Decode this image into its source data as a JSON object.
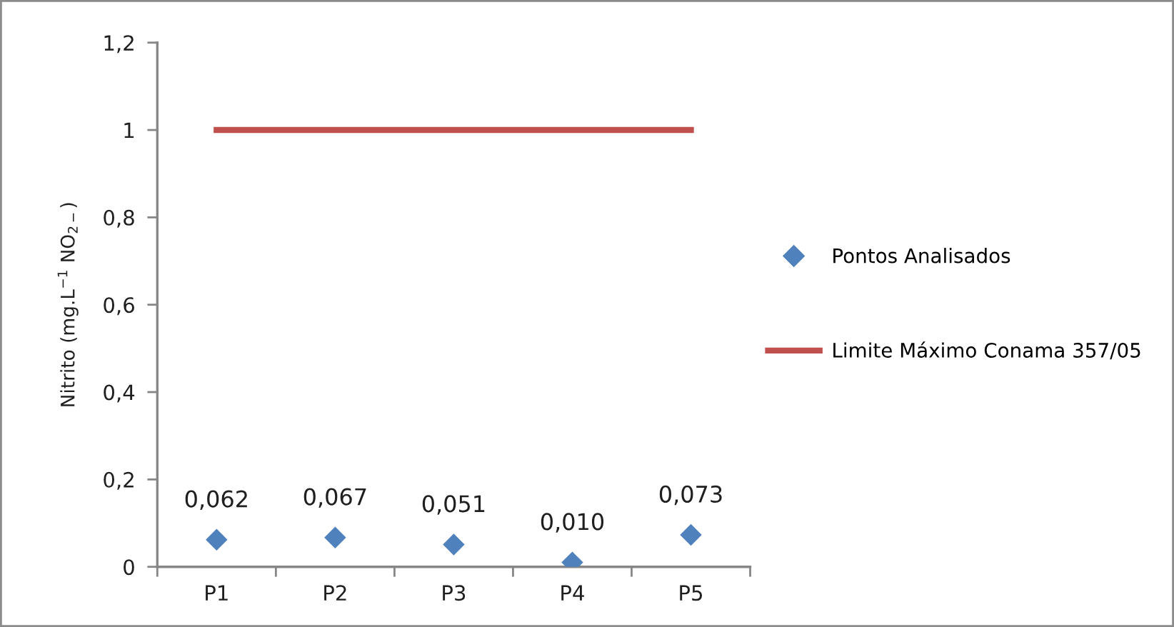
{
  "chart_data": {
    "type": "scatter",
    "categories": [
      "P1",
      "P2",
      "P3",
      "P4",
      "P5"
    ],
    "ylabel": "Nitrito (mg.L$^{−1}$ NO$_{2−}$)",
    "series": [
      {
        "name": "Pontos Analisados",
        "marker": "diamond",
        "color": "#4f81bd",
        "values": [
          0.062,
          0.067,
          0.051,
          0.01,
          0.073
        ],
        "value_labels": [
          "0,062",
          "0,067",
          "0,051",
          "0,010",
          "0,073"
        ]
      },
      {
        "name": "Limite Máximo Conama 357/05",
        "type": "line",
        "marker": "none",
        "line_style": "solid",
        "color": "#c0504d",
        "values": [
          1,
          1,
          1,
          1,
          1
        ]
      }
    ],
    "ylim": [
      0,
      1.2
    ],
    "yticks": [
      0,
      {
        "value": 0.2,
        "label": "0,2"
      },
      {
        "value": 0.4,
        "label": "0,4"
      },
      {
        "value": 0.6,
        "label": "0,6"
      },
      {
        "value": 0.8,
        "label": "0,8"
      },
      1,
      {
        "value": 1.2,
        "label": "1,2"
      }
    ],
    "legend": "right"
  }
}
